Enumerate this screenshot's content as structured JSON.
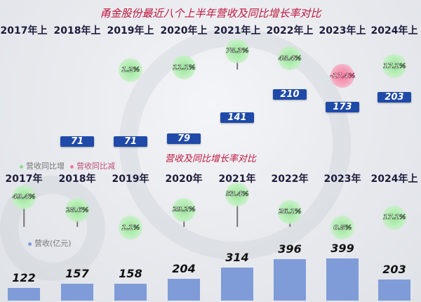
{
  "chart_data": [
    {
      "type": "bar",
      "title": "甬金股份最近八个上半年营收及同比增长率对比",
      "categories": [
        "2017年上",
        "2018年上",
        "2019年上",
        "2020年上",
        "2021年上",
        "2022年上",
        "2023年上",
        "2024年上"
      ],
      "series": [
        {
          "name": "营收(亿元)",
          "values": [
            null,
            71,
            71,
            79,
            141,
            210,
            173,
            203
          ],
          "labels": [
            "",
            "71",
            "71",
            "79",
            "141",
            "210",
            "173",
            "203"
          ]
        },
        {
          "name": "同比增长率",
          "values": [
            null,
            null,
            1.2,
            11.1,
            78.3,
            48.4,
            -17.4,
            17.1
          ],
          "labels": [
            "",
            "",
            "1.2%",
            "11.1%",
            "78.3%",
            "48.4%",
            "-17.4%",
            "17.1%"
          ]
        }
      ]
    },
    {
      "type": "bar",
      "title": "营收及同比增长率对比",
      "legend": [
        "营收同比增",
        "营收同比减",
        "营收(亿元)"
      ],
      "categories": [
        "2017年",
        "2018年",
        "2019年",
        "2020年",
        "2021年",
        "2022年",
        "2023年",
        "2024年上"
      ],
      "series": [
        {
          "name": "营收(亿元)",
          "values": [
            122,
            157,
            158,
            204,
            314,
            396,
            399,
            203
          ],
          "labels": [
            "122",
            "157",
            "158",
            "204",
            "314",
            "396",
            "399",
            "203"
          ]
        },
        {
          "name": "同比增长率",
          "values": [
            49.4,
            28.6,
            1.1,
            29.2,
            53.4,
            26.1,
            0.8,
            17.1
          ],
          "labels": [
            "49.4%",
            "28.6%",
            "1.1%",
            "29.2%",
            "53.4%",
            "26.1%",
            "0.8%",
            "17.1%"
          ]
        }
      ]
    }
  ],
  "colors": {
    "increase": "#8fdc8f",
    "decrease": "#f07a9e",
    "bar": "#7f9cd9",
    "box": "#1f4aa8",
    "title": "#c0143c"
  }
}
